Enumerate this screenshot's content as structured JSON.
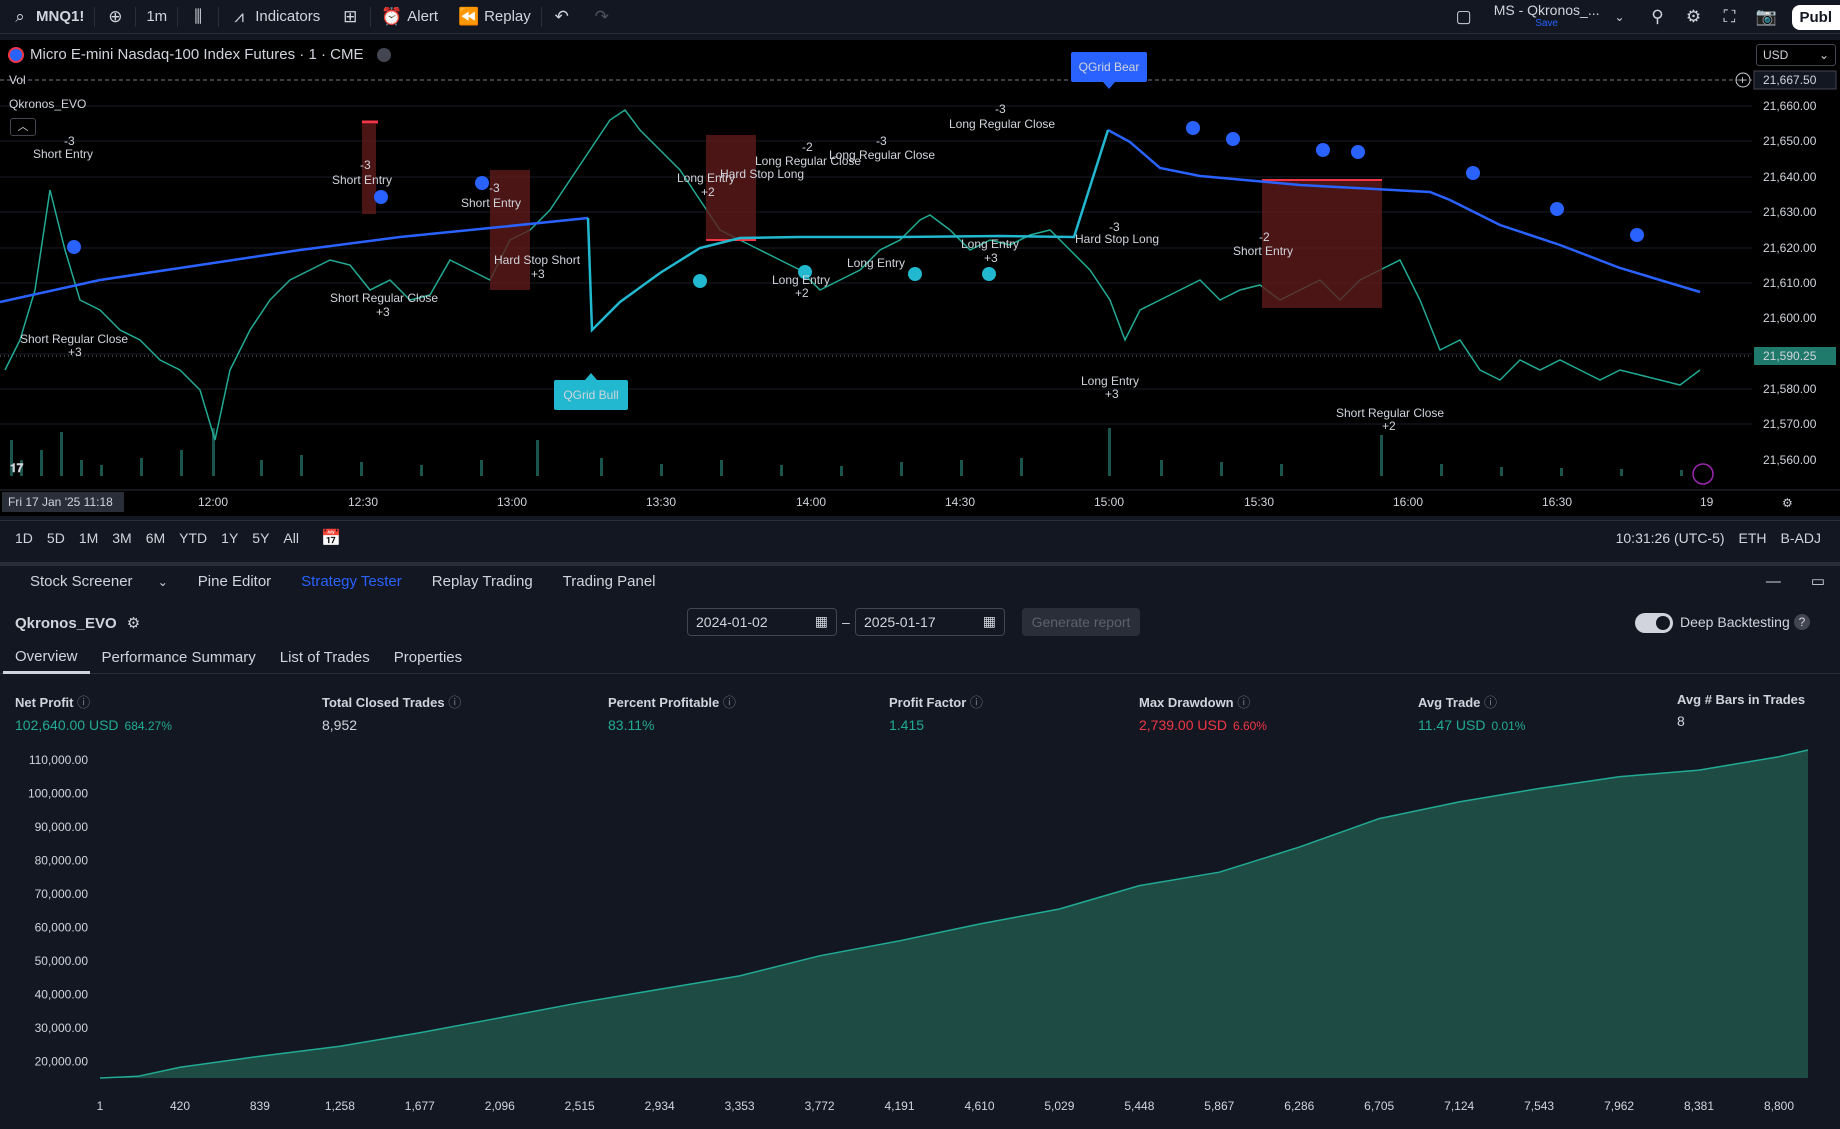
{
  "topbar": {
    "symbol": "MNQ1!",
    "interval": "1m",
    "indicators": "Indicators",
    "alert": "Alert",
    "replay": "Replay",
    "layout_name": "MS - Qkronos_...",
    "layout_status": "Save",
    "publish": "Publ"
  },
  "chart": {
    "title": "Micro E-mini Nasdaq-100 Index Futures · 1 · CME",
    "vol_label": "Vol",
    "indicator_label": "Qkronos_EVO",
    "currency": "USD",
    "price_ticks": [
      "21,660.00",
      "21,650.00",
      "21,640.00",
      "21,630.00",
      "21,620.00",
      "21,610.00",
      "21,600.00",
      "21,590.25",
      "21,580.00",
      "21,570.00",
      "21,560.00"
    ],
    "top_price_tag": "21,667.50",
    "current_price": "21,590.25",
    "date_tag": "Fri 17 Jan '25   11:18",
    "time_ticks": [
      "12:00",
      "12:30",
      "13:00",
      "13:30",
      "14:00",
      "14:30",
      "15:00",
      "15:30",
      "16:00",
      "16:30",
      "19"
    ],
    "qgrid_bull": "QGrid Bull",
    "qgrid_bear": "QGrid Bear",
    "annotations": [
      {
        "text": "Short Entry",
        "qty": "-3"
      },
      {
        "text": "Short Regular Close",
        "qty": "+3"
      },
      {
        "text": "Short Entry",
        "qty": "-3"
      },
      {
        "text": "Short Regular Close",
        "qty": "+3"
      },
      {
        "text": "Short Entry",
        "qty": "-3"
      },
      {
        "text": "Hard Stop Short",
        "qty": "+3"
      },
      {
        "text": "Long Entry",
        "qty": "+2"
      },
      {
        "text": "Hard Stop Long",
        "qty": ""
      },
      {
        "text": "Long Regular Close",
        "qty": "-2"
      },
      {
        "text": "Long Regular Close",
        "qty": "-3"
      },
      {
        "text": "Long Regular Close",
        "qty": "-3"
      },
      {
        "text": "Long Entry",
        "qty": "+2"
      },
      {
        "text": "Long Entry",
        "qty": ""
      },
      {
        "text": "Long Entry",
        "qty": "+3"
      },
      {
        "text": "Hard Stop Long",
        "qty": "-3"
      },
      {
        "text": "Long Entry",
        "qty": "+3"
      },
      {
        "text": "Short Entry",
        "qty": "-2"
      },
      {
        "text": "Short Regular Close",
        "qty": "+2"
      }
    ]
  },
  "timebar": {
    "ranges": [
      "1D",
      "5D",
      "1M",
      "3M",
      "6M",
      "YTD",
      "1Y",
      "5Y",
      "All"
    ],
    "clock": "10:31:26 (UTC-5)",
    "session": "ETH",
    "adj": "B-ADJ"
  },
  "panel": {
    "tabs": [
      "Stock Screener",
      "Pine Editor",
      "Strategy Tester",
      "Replay Trading",
      "Trading Panel"
    ],
    "strategy_name": "Qkronos_EVO",
    "date_from": "2024-01-02",
    "date_to": "2025-01-17",
    "date_sep": "–",
    "generate": "Generate report",
    "deep_backtesting": "Deep Backtesting",
    "subtabs": [
      "Overview",
      "Performance Summary",
      "List of Trades",
      "Properties"
    ]
  },
  "metrics": {
    "net_profit": {
      "label": "Net Profit",
      "value": "102,640.00 USD",
      "pct": "684.27%"
    },
    "total_closed": {
      "label": "Total Closed Trades",
      "value": "8,952"
    },
    "percent_profitable": {
      "label": "Percent Profitable",
      "value": "83.11%"
    },
    "profit_factor": {
      "label": "Profit Factor",
      "value": "1.415"
    },
    "max_drawdown": {
      "label": "Max Drawdown",
      "value": "2,739.00 USD",
      "pct": "6.60%"
    },
    "avg_trade": {
      "label": "Avg Trade",
      "value": "11.47 USD",
      "pct": "0.01%"
    },
    "avg_bars": {
      "label": "Avg # Bars in Trades",
      "value": "8"
    }
  },
  "chart_data": {
    "type": "area",
    "title": "",
    "xlabel": "",
    "ylabel": "",
    "x_ticks": [
      "1",
      "420",
      "839",
      "1,258",
      "1,677",
      "2,096",
      "2,515",
      "2,934",
      "3,353",
      "3,772",
      "4,191",
      "4,610",
      "5,029",
      "5,448",
      "5,867",
      "6,286",
      "6,705",
      "7,124",
      "7,543",
      "7,962",
      "8,381",
      "8,800"
    ],
    "y_ticks": [
      "110,000.00",
      "100,000.00",
      "90,000.00",
      "80,000.00",
      "70,000.00",
      "60,000.00",
      "50,000.00",
      "40,000.00",
      "30,000.00",
      "20,000.00"
    ],
    "ylim": [
      15000,
      113000
    ],
    "xlim": [
      1,
      8952
    ],
    "series": [
      {
        "x": [
          1,
          200,
          420,
          839,
          1258,
          1677,
          2096,
          2515,
          2934,
          3353,
          3772,
          4191,
          4610,
          5029,
          5448,
          5867,
          6286,
          6705,
          7124,
          7543,
          7962,
          8381,
          8800,
          8952
        ],
        "values": [
          15000,
          15500,
          18200,
          21500,
          24500,
          28500,
          33000,
          37500,
          41500,
          45500,
          51500,
          56000,
          61000,
          65500,
          72500,
          76500,
          84000,
          92500,
          97500,
          101500,
          105000,
          107000,
          111000,
          113000
        ]
      }
    ],
    "fill_color": "#1f4b45",
    "line_color": "#22ab94"
  }
}
